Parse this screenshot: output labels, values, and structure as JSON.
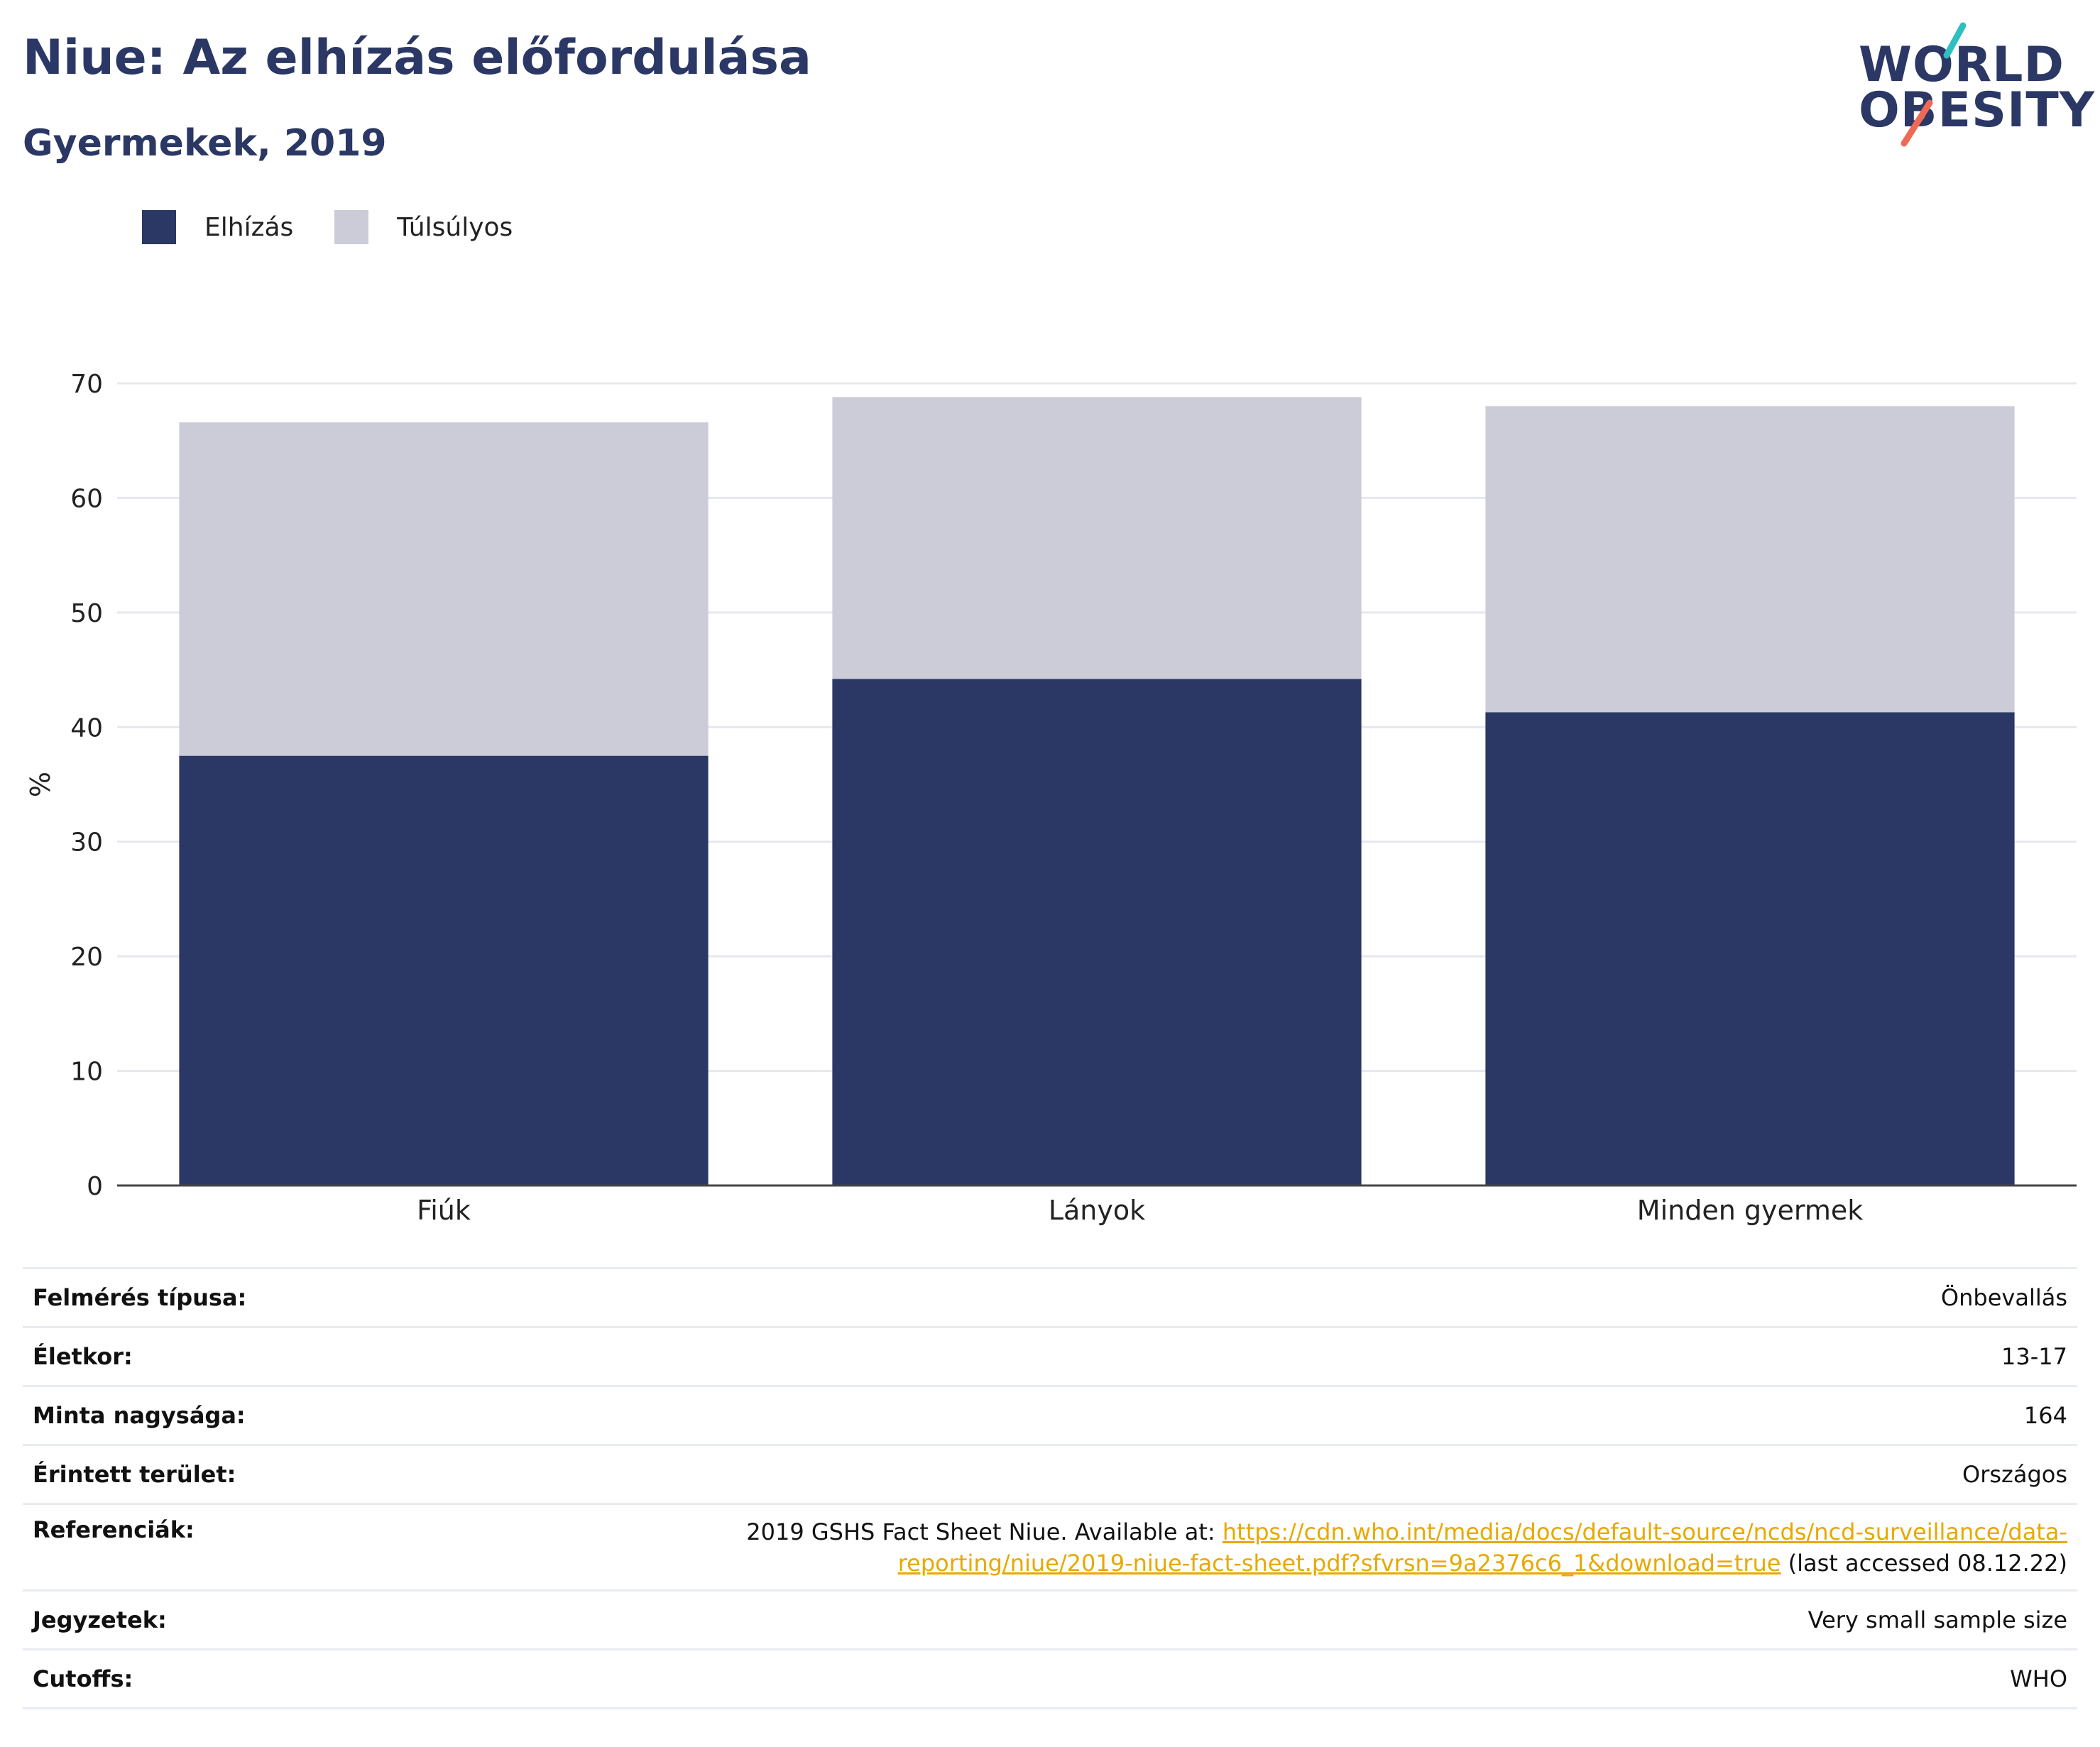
{
  "header": {
    "title": "Niue: Az elhízás előfordulása",
    "subtitle": "Gyermekek, 2019"
  },
  "logo": {
    "line1": "WORLD",
    "line2": "OBESITY",
    "accent_colors": [
      "#2ebfc0",
      "#ee6a55"
    ]
  },
  "colors": {
    "obesity": "#2b3764",
    "overweight": "#cbccd8",
    "link": "#e9a800"
  },
  "legend": {
    "items": [
      {
        "label": "Elhízás",
        "color": "#2b3764"
      },
      {
        "label": "Túlsúlyos",
        "color": "#cbccd8"
      }
    ]
  },
  "chart_data": {
    "type": "bar",
    "stacked": true,
    "categories": [
      "Fiúk",
      "Lányok",
      "Minden gyermek"
    ],
    "series": [
      {
        "name": "Elhízás",
        "values": [
          37.5,
          44.2,
          41.3
        ],
        "color": "#2b3764"
      },
      {
        "name": "Túlsúlyos",
        "values": [
          29.1,
          24.6,
          26.7
        ],
        "color": "#cbccd8"
      }
    ],
    "title": "Niue: Az elhízás előfordulása",
    "subtitle": "Gyermekek, 2019",
    "xlabel": "",
    "ylabel": "%",
    "ylim": [
      0,
      70
    ],
    "yticks": [
      0,
      10,
      20,
      30,
      40,
      50,
      60,
      70
    ],
    "grid": true,
    "legend_position": "top-left"
  },
  "info": {
    "rows": [
      {
        "label": "Felmérés típusa:",
        "value": "Önbevallás"
      },
      {
        "label": "Életkor:",
        "value": "13-17"
      },
      {
        "label": "Minta nagysága:",
        "value": "164"
      },
      {
        "label": "Érintett terület:",
        "value": "Országos"
      }
    ],
    "references": {
      "label": "Referenciák:",
      "prefix": "2019 GSHS Fact Sheet Niue. Available at: ",
      "link": "https://cdn.who.int/media/docs/default-source/ncds/ncd-surveillance/data-reporting/niue/2019-niue-fact-sheet.pdf?sfvrsn=9a2376c6_1&download=true",
      "suffix": " (last accessed 08.12.22)"
    },
    "notes": {
      "label": "Jegyzetek:",
      "value": "Very small sample size"
    },
    "cutoffs": {
      "label": "Cutoffs:",
      "value": "WHO"
    }
  }
}
